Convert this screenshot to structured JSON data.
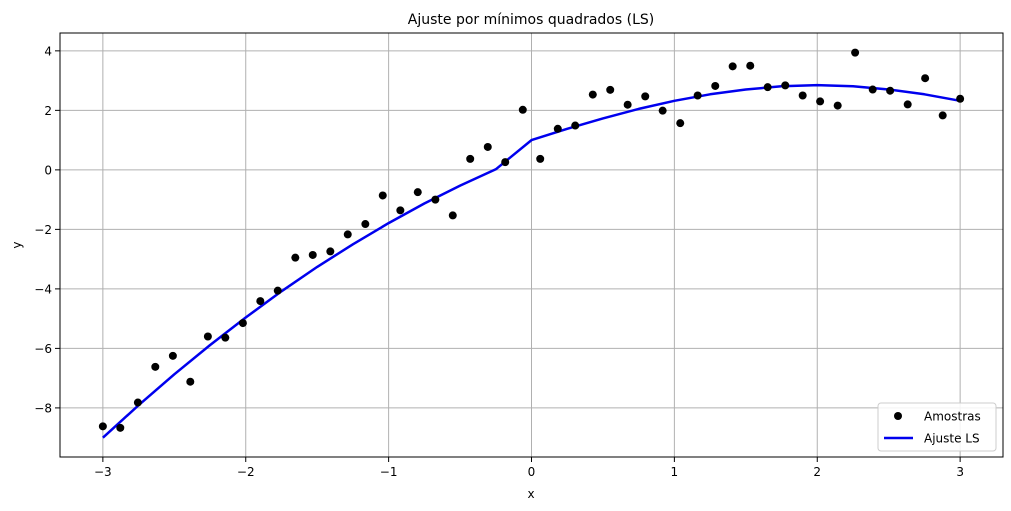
{
  "chart_data": {
    "type": "scatter",
    "title": "Ajuste por mínimos quadrados (LS)",
    "xlabel": "x",
    "ylabel": "y",
    "xlim": [
      -3.3,
      3.3
    ],
    "ylim": [
      -9.65,
      4.6
    ],
    "xticks": [
      -3,
      -2,
      -1,
      0,
      1,
      2,
      3
    ],
    "xtick_labels": [
      "−3",
      "−2",
      "−1",
      "0",
      "1",
      "2",
      "3"
    ],
    "yticks": [
      -8,
      -6,
      -4,
      -2,
      0,
      2,
      4
    ],
    "ytick_labels": [
      "−8",
      "−6",
      "−4",
      "−2",
      "0",
      "2",
      "4"
    ],
    "grid": true,
    "legend_position": "lower-right",
    "series": [
      {
        "name": "Amostras",
        "kind": "scatter",
        "color": "#000000",
        "x": [
          -3.0,
          -2.878,
          -2.755,
          -2.633,
          -2.51,
          -2.388,
          -2.265,
          -2.143,
          -2.02,
          -1.898,
          -1.776,
          -1.653,
          -1.531,
          -1.408,
          -1.286,
          -1.163,
          -1.041,
          -0.918,
          -0.796,
          -0.673,
          -0.551,
          -0.429,
          -0.306,
          -0.184,
          -0.061,
          0.061,
          0.184,
          0.306,
          0.429,
          0.551,
          0.673,
          0.796,
          0.918,
          1.041,
          1.163,
          1.286,
          1.408,
          1.531,
          1.653,
          1.776,
          1.898,
          2.02,
          2.143,
          2.265,
          2.388,
          2.51,
          2.633,
          2.755,
          2.878,
          3.0
        ],
        "y": [
          -8.62,
          -8.67,
          -7.82,
          -6.62,
          -6.25,
          -7.12,
          -5.6,
          -5.64,
          -5.15,
          -4.41,
          -4.06,
          -2.95,
          -2.86,
          -2.74,
          -2.17,
          -1.82,
          -0.86,
          -1.36,
          -0.75,
          -1.0,
          -1.53,
          0.37,
          0.77,
          0.26,
          2.02,
          0.37,
          1.38,
          1.49,
          2.53,
          2.69,
          2.19,
          2.47,
          1.99,
          1.57,
          2.5,
          2.82,
          3.48,
          3.5,
          2.78,
          2.84,
          2.5,
          2.3,
          2.16,
          3.94,
          2.7,
          2.66,
          2.2,
          3.08,
          1.83,
          2.39
        ]
      },
      {
        "name": "Ajuste LS",
        "kind": "line",
        "color": "#0000ee",
        "x": [
          -3.0,
          -2.75,
          -2.5,
          -2.25,
          -2.0,
          -1.75,
          -1.5,
          -1.25,
          -1.0,
          -0.75,
          -0.5,
          -0.25,
          0.0,
          0.25,
          0.5,
          0.75,
          1.0,
          1.25,
          1.5,
          1.75,
          2.0,
          2.25,
          2.5,
          2.75,
          3.0
        ],
        "y": [
          -9.0,
          -7.91,
          -6.87,
          -5.89,
          -4.96,
          -4.08,
          -3.26,
          -2.5,
          -1.79,
          -1.13,
          -0.53,
          0.02,
          1.0,
          1.38,
          1.73,
          2.05,
          2.32,
          2.54,
          2.7,
          2.81,
          2.85,
          2.81,
          2.7,
          2.54,
          2.32
        ]
      }
    ]
  }
}
